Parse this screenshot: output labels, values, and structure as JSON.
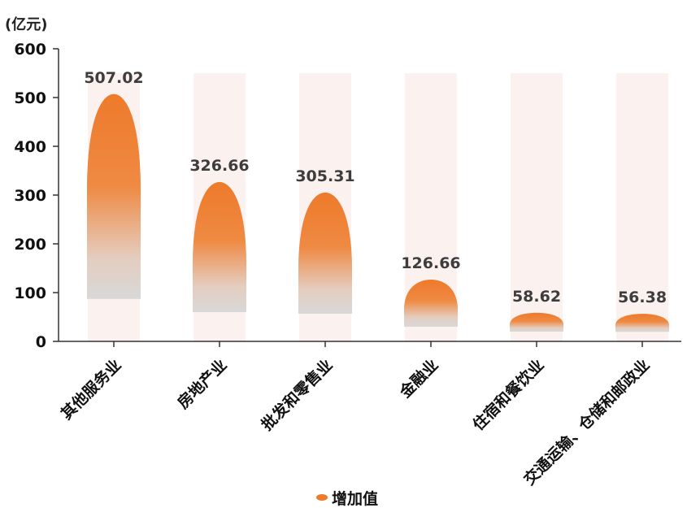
{
  "chart_data": {
    "type": "bar",
    "unit_label": "(亿元)",
    "categories": [
      "其他服务业",
      "房地产业",
      "批发和零售业",
      "金融业",
      "住宿和餐饮业",
      "交通运输、仓储和邮政业"
    ],
    "series": [
      {
        "name": "增加值",
        "values": [
          507.02,
          326.66,
          305.31,
          126.66,
          58.62,
          56.38
        ]
      }
    ],
    "data_labels": [
      "507.02",
      "326.66",
      "305.31",
      "126.66",
      "58.62",
      "56.38"
    ],
    "yticks": [
      "0",
      "100",
      "200",
      "300",
      "400",
      "500",
      "600"
    ],
    "ylim": [
      0,
      600
    ],
    "legend": {
      "label": "增加值",
      "position": "bottom"
    },
    "colors": {
      "bar_top": "#ee7a2a",
      "bar_bottom": "#d9d9d9",
      "background_column": "#fbf1ee",
      "axis": "#333333"
    }
  }
}
